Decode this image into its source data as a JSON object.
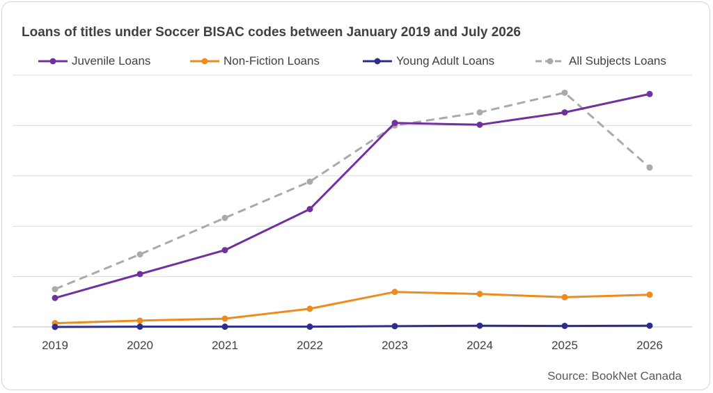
{
  "chart_data": {
    "type": "line",
    "title": "Loans of titles under Soccer BISAC codes between January 2019 and July 2026",
    "source": "Source: BookNet Canada",
    "categories": [
      "2019",
      "2020",
      "2021",
      "2022",
      "2023",
      "2024",
      "2025",
      "2026"
    ],
    "y_axis_labels_shown": false,
    "ylim": [
      0,
      100
    ],
    "grid": true,
    "legend_position": "top",
    "series": [
      {
        "name": "Juvenile Loans",
        "color": "#7030a0",
        "style": "solid",
        "values": [
          11.5,
          21.0,
          30.5,
          46.8,
          81.0,
          80.3,
          85.2,
          92.5
        ]
      },
      {
        "name": "Non-Fiction Loans",
        "color": "#ed8b1f",
        "style": "solid",
        "values": [
          1.5,
          2.5,
          3.3,
          7.2,
          13.9,
          13.1,
          11.8,
          12.8
        ]
      },
      {
        "name": "Young Adult Loans",
        "color": "#2e2e8a",
        "style": "solid",
        "values": [
          0.0,
          0.1,
          0.1,
          0.1,
          0.3,
          0.5,
          0.4,
          0.5
        ]
      },
      {
        "name": "All Subjects Loans",
        "color": "#aaaaaa",
        "style": "dashed",
        "values": [
          15.0,
          28.8,
          43.3,
          57.7,
          80.0,
          85.2,
          93.0,
          63.3
        ]
      }
    ]
  }
}
